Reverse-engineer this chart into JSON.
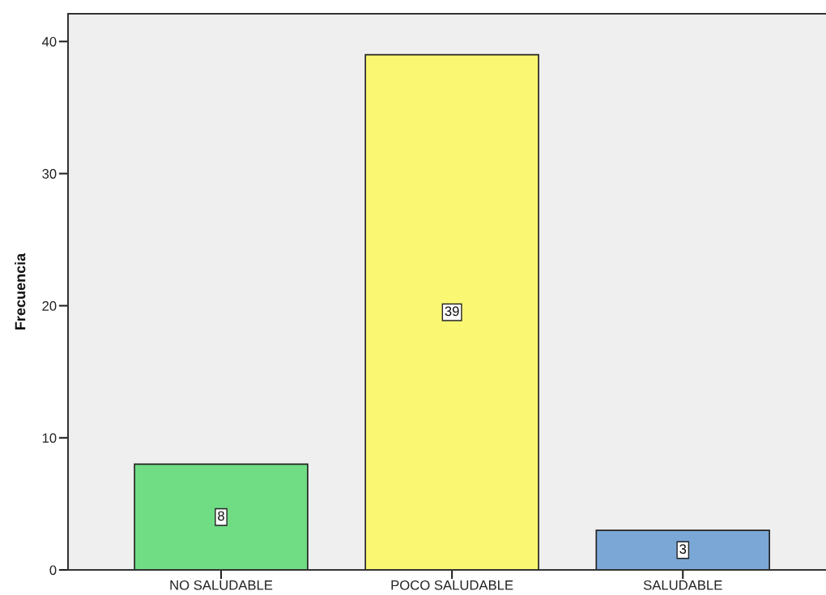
{
  "chart_data": {
    "type": "bar",
    "ylabel": "Frecuencia",
    "categories": [
      "NO SALUDABLE",
      "POCO SALUDABLE",
      "SALUDABLE"
    ],
    "values": [
      8,
      39,
      3
    ],
    "colors": [
      "#70dc84",
      "#faf873",
      "#7ba7d6"
    ],
    "ylim": [
      0,
      42.1
    ],
    "yticks": [
      0,
      10,
      20,
      30,
      40
    ],
    "data_labels": true
  }
}
